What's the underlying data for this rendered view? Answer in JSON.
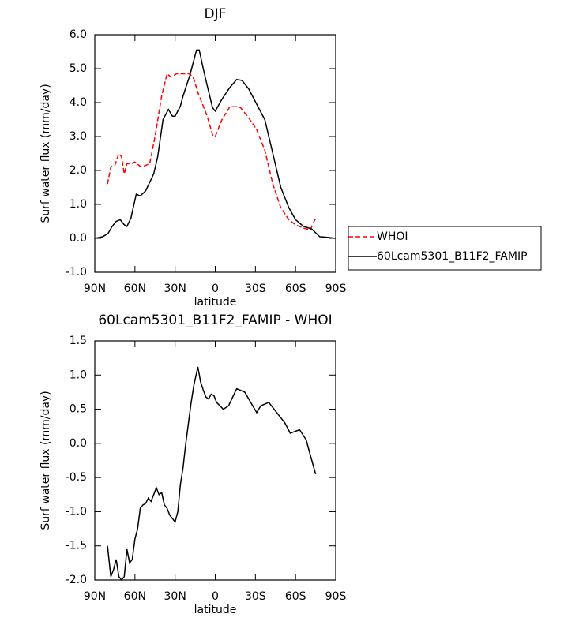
{
  "chart_data": [
    {
      "type": "line",
      "title": "DJF",
      "x_label": "latitude",
      "y_label": "Surf water flux (mm/day)",
      "xlim": [
        90,
        -90
      ],
      "xticks": [
        {
          "value": 90,
          "label": "90N"
        },
        {
          "value": 60,
          "label": "60N"
        },
        {
          "value": 30,
          "label": "30N"
        },
        0,
        {
          "value": -30,
          "label": "30S"
        },
        {
          "value": -60,
          "label": "60S"
        },
        {
          "value": -90,
          "label": "90S"
        }
      ],
      "ylim": [
        -1,
        6
      ],
      "yticks": [
        {
          "value": -1,
          "label": "-1.0"
        },
        {
          "value": 0,
          "label": "0.0"
        },
        {
          "value": 1,
          "label": "1.0"
        },
        {
          "value": 2,
          "label": "2.0"
        },
        {
          "value": 3,
          "label": "3.0"
        },
        {
          "value": 4,
          "label": "4.0"
        },
        {
          "value": 5,
          "label": "5.0"
        },
        {
          "value": 6,
          "label": "6.0"
        }
      ],
      "legend": "right",
      "series": [
        {
          "name": "WHOI",
          "color": "#ff0000",
          "dash": true,
          "x": [
            80.5,
            78,
            75,
            72,
            70,
            68,
            66,
            63,
            60,
            57,
            55,
            49,
            45,
            40,
            36,
            33,
            29,
            23,
            19,
            16,
            13,
            10,
            6,
            2,
            0,
            -5,
            -11,
            -16,
            -19,
            -25,
            -31,
            -37,
            -43,
            -49,
            -55,
            -60,
            -66,
            -71,
            -75
          ],
          "values": [
            1.6,
            2.1,
            2.15,
            2.5,
            2.4,
            1.9,
            2.2,
            2.2,
            2.25,
            2.15,
            2.1,
            2.2,
            3.0,
            4.2,
            4.85,
            4.75,
            4.85,
            4.85,
            4.85,
            4.7,
            4.3,
            4.0,
            3.6,
            3.05,
            3.0,
            3.5,
            3.88,
            3.88,
            3.85,
            3.55,
            3.2,
            2.6,
            1.6,
            0.9,
            0.55,
            0.4,
            0.3,
            0.25,
            0.6
          ]
        },
        {
          "name": "60Lcam5301_B11F2_FAMIP",
          "color": "#000000",
          "dash": false,
          "x": [
            90,
            84,
            80,
            77,
            74,
            71,
            68,
            66,
            63,
            59,
            56,
            52,
            46,
            43,
            39,
            35,
            32,
            30,
            26,
            24,
            19,
            14,
            12,
            9,
            6,
            2,
            0,
            -5,
            -11,
            -16,
            -20,
            -25,
            -31,
            -37,
            -43,
            -49,
            -55,
            -60,
            -66,
            -72,
            -78,
            -84,
            -90
          ],
          "values": [
            0.0,
            0.05,
            0.15,
            0.35,
            0.5,
            0.55,
            0.4,
            0.35,
            0.6,
            1.3,
            1.25,
            1.4,
            1.9,
            2.4,
            3.5,
            3.8,
            3.6,
            3.6,
            3.9,
            4.2,
            4.8,
            5.55,
            5.55,
            5.0,
            4.5,
            3.85,
            3.75,
            4.1,
            4.45,
            4.68,
            4.65,
            4.4,
            3.95,
            3.5,
            2.5,
            1.5,
            0.9,
            0.55,
            0.35,
            0.28,
            0.05,
            0.03,
            0.0
          ]
        }
      ]
    },
    {
      "type": "line",
      "title": "60Lcam5301_B11F2_FAMIP - WHOI",
      "x_label": "latitude",
      "y_label": "Surf water flux (mm/day)",
      "xlim": [
        90,
        -90
      ],
      "xticks": [
        {
          "value": 90,
          "label": "90N"
        },
        {
          "value": 60,
          "label": "60N"
        },
        {
          "value": 30,
          "label": "30N"
        },
        0,
        {
          "value": -30,
          "label": "30S"
        },
        {
          "value": -60,
          "label": "60S"
        },
        {
          "value": -90,
          "label": "90S"
        }
      ],
      "ylim": [
        -2,
        1.5
      ],
      "yticks": [
        {
          "value": -2,
          "label": "-2.0"
        },
        -1.5,
        {
          "value": -1,
          "label": "-1.0"
        },
        -0.5,
        {
          "value": 0,
          "label": "0.0"
        },
        0.5,
        {
          "value": 1,
          "label": "1.0"
        },
        1.5
      ],
      "series": [
        {
          "color": "#000000",
          "dash": false,
          "x": [
            80.5,
            78,
            76,
            74,
            72,
            70,
            68,
            66,
            64,
            62,
            60,
            58,
            56,
            54,
            52,
            50,
            48,
            46,
            44,
            42,
            40,
            38,
            36,
            34,
            32,
            30,
            28,
            26,
            24,
            22,
            20,
            18,
            16,
            13,
            11,
            9,
            7,
            5,
            3,
            1,
            -1,
            -6,
            -10,
            -16,
            -22,
            -28,
            -31,
            -34,
            -40,
            -46,
            -52,
            -56,
            -63,
            -68,
            -70,
            -75
          ],
          "values": [
            -1.5,
            -1.95,
            -1.85,
            -1.7,
            -1.95,
            -2.0,
            -1.95,
            -1.55,
            -1.75,
            -1.7,
            -1.4,
            -1.25,
            -0.95,
            -0.9,
            -0.88,
            -0.8,
            -0.85,
            -0.75,
            -0.65,
            -0.75,
            -0.72,
            -0.9,
            -0.95,
            -1.05,
            -1.1,
            -1.15,
            -1.0,
            -0.6,
            -0.35,
            0.0,
            0.3,
            0.6,
            0.85,
            1.12,
            0.9,
            0.78,
            0.68,
            0.65,
            0.72,
            0.7,
            0.6,
            0.5,
            0.55,
            0.8,
            0.75,
            0.55,
            0.45,
            0.55,
            0.6,
            0.45,
            0.3,
            0.15,
            0.2,
            0.05,
            -0.1,
            -0.45
          ]
        }
      ]
    }
  ]
}
